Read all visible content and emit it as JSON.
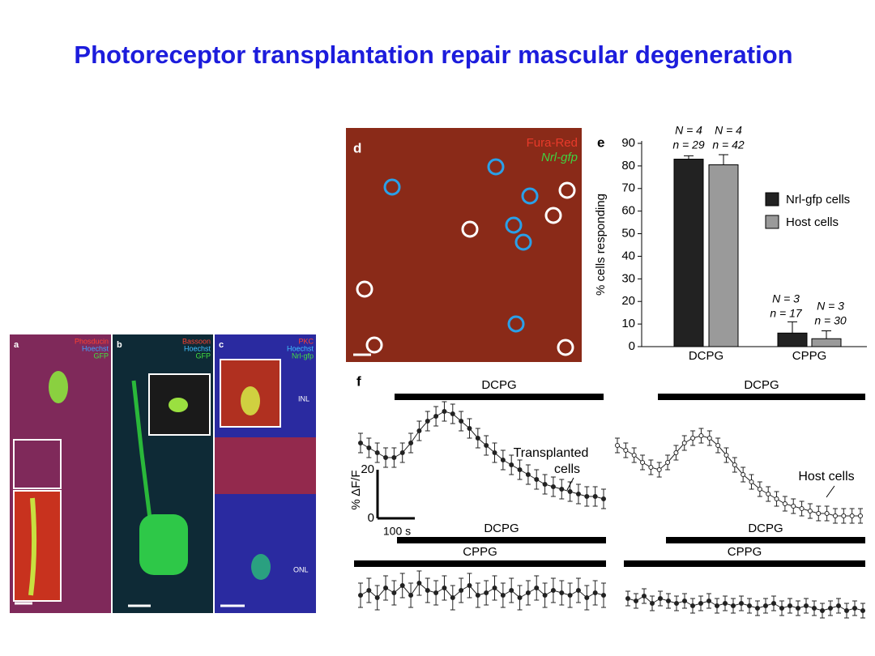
{
  "title": "Photoreceptor transplantation repair mascular degeneration",
  "micrographs": [
    {
      "letter": "a",
      "labels": [
        "Phosducin",
        "Hoechst",
        "GFP"
      ]
    },
    {
      "letter": "b",
      "labels": [
        "Bassoon",
        "Hoechst",
        "GFP"
      ]
    },
    {
      "letter": "c",
      "labels": [
        "PKC",
        "Hoechst",
        "Nrl-gfp"
      ],
      "layers": [
        "INL",
        "ONL"
      ]
    },
    {
      "letter": "d",
      "labels": [
        "Fura-Red",
        "Nrl-gfp"
      ]
    }
  ],
  "chart_e": {
    "type": "bar",
    "letter": "e",
    "y_label": "% cells responding",
    "categories": [
      "DCPG",
      "CPPG"
    ],
    "series": [
      {
        "name": "Nrl-gfp cells",
        "color": "#222222",
        "values": [
          83,
          6
        ],
        "errors": [
          1.5,
          5
        ]
      },
      {
        "name": "Host cells",
        "color": "#9a9a9a",
        "values": [
          80.5,
          3.5
        ],
        "errors": [
          4.5,
          3.5
        ]
      }
    ],
    "annotations": [
      [
        "N = 4",
        "n = 29"
      ],
      [
        "N = 4",
        "n = 42"
      ],
      [
        "N = 3",
        "n = 17"
      ],
      [
        "N = 3",
        "n = 30"
      ]
    ],
    "ylim": [
      0,
      90
    ],
    "yticks": [
      0,
      10,
      20,
      30,
      40,
      50,
      60,
      70,
      80,
      90
    ]
  },
  "panel_f": {
    "letter": "f",
    "scale": {
      "label": "% ΔF/F",
      "ticks": [
        20,
        0
      ],
      "time": "100 s"
    },
    "traces": [
      {
        "drugs": [
          "DCPG"
        ],
        "label_lines": [
          "Transplanted",
          "cells"
        ],
        "error": 4,
        "values": [
          31,
          29,
          27,
          25,
          25,
          27,
          31,
          36,
          40,
          42,
          44,
          43,
          40,
          37,
          33,
          30,
          27,
          24,
          22,
          20,
          18,
          16,
          14,
          13,
          12,
          11,
          10,
          9,
          9,
          8
        ]
      },
      {
        "drugs": [
          "DCPG"
        ],
        "label_lines": [
          "Host cells"
        ],
        "error": 3,
        "values": [
          34,
          32,
          30,
          27,
          25,
          24,
          27,
          31,
          35,
          37,
          38,
          37,
          34,
          30,
          26,
          22,
          19,
          16,
          14,
          12,
          10,
          9,
          8,
          7,
          6,
          6,
          5,
          5,
          5,
          5
        ]
      },
      {
        "drugs": [
          "DCPG",
          "CPPG"
        ],
        "error": 5,
        "values": [
          10,
          12,
          9,
          13,
          11,
          14,
          10,
          15,
          12,
          11,
          13,
          9,
          12,
          14,
          10,
          11,
          13,
          10,
          12,
          9,
          11,
          13,
          10,
          12,
          11,
          10,
          12,
          9,
          11,
          10
        ]
      },
      {
        "drugs": [
          "DCPG",
          "CPPG"
        ],
        "error": 3,
        "values": [
          11,
          10,
          12,
          9,
          11,
          10,
          9,
          10,
          8,
          9,
          10,
          8,
          9,
          8,
          9,
          8,
          7,
          8,
          9,
          7,
          8,
          7,
          8,
          7,
          6,
          7,
          8,
          6,
          7,
          6
        ]
      }
    ]
  }
}
